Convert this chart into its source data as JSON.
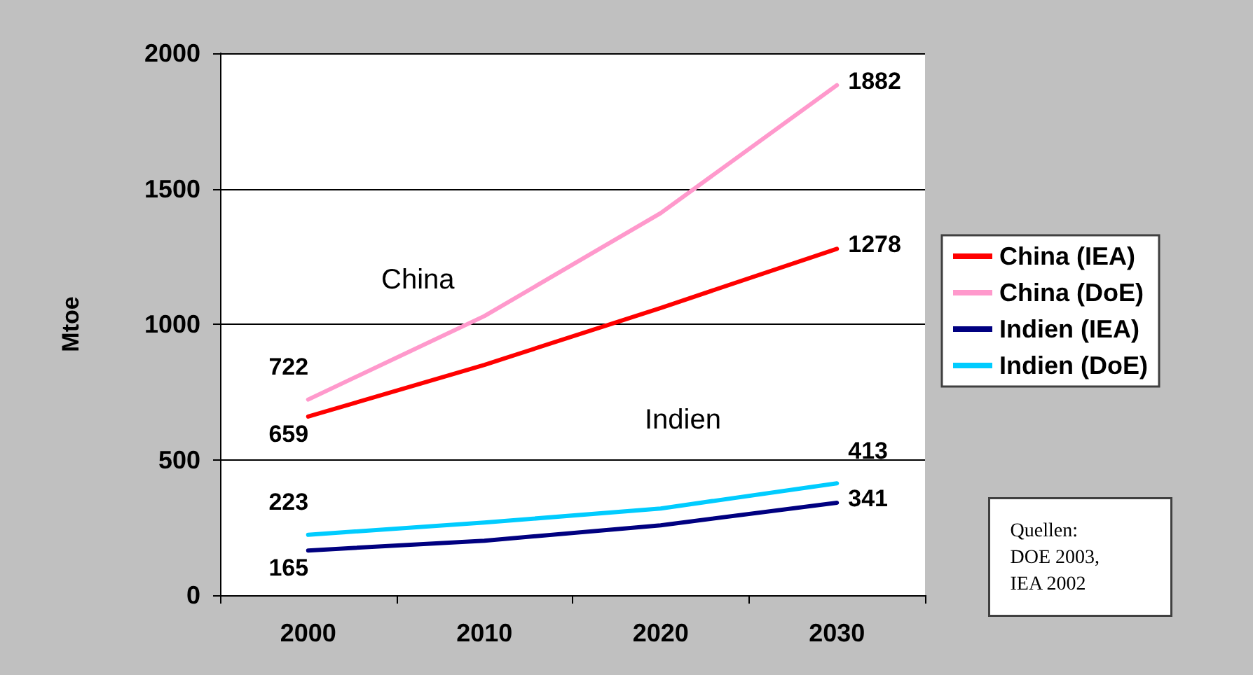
{
  "chart_data": {
    "type": "line",
    "ylabel": "Mtoe",
    "categories": [
      "2000",
      "2010",
      "2020",
      "2030"
    ],
    "ylim": [
      0,
      2000
    ],
    "yticks": [
      0,
      500,
      1000,
      1500,
      2000
    ],
    "grid": "y",
    "legend": "right",
    "marker": "none",
    "line_style": "solid",
    "series": [
      {
        "name": "China (IEA)",
        "color": "#ff0000",
        "values": [
          659,
          850,
          1060,
          1278
        ],
        "value_labels": [
          "659",
          null,
          null,
          "1278"
        ]
      },
      {
        "name": "China (DoE)",
        "color": "#ff99cc",
        "values": [
          722,
          1030,
          1410,
          1882
        ],
        "value_labels": [
          "722",
          null,
          null,
          "1882"
        ]
      },
      {
        "name": "Indien (IEA)",
        "color": "#000080",
        "values": [
          165,
          201,
          258,
          341
        ],
        "value_labels": [
          "165",
          null,
          null,
          "341"
        ]
      },
      {
        "name": "Indien (DoE)",
        "color": "#00ccff",
        "values": [
          223,
          268,
          320,
          413
        ],
        "value_labels": [
          "223",
          null,
          null,
          "413"
        ]
      }
    ],
    "annotations": [
      "China",
      "Indien",
      "Quellen:\nDOE 2003,\nIEA 2002"
    ]
  }
}
